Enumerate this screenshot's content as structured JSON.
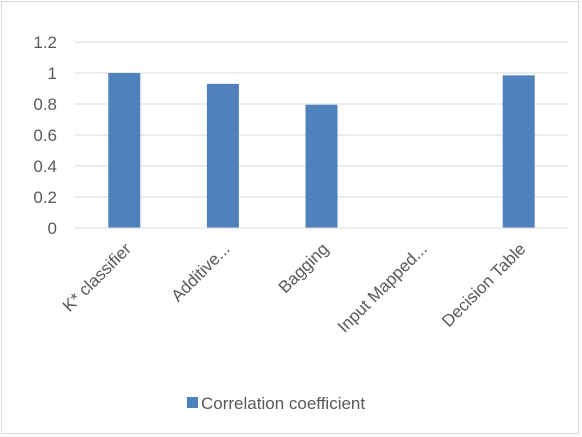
{
  "chart_data": {
    "type": "bar",
    "title": "",
    "xlabel": "",
    "ylabel": "",
    "categories": [
      "K* classifier",
      "Additive...",
      "Bagging",
      "Input Mapped...",
      "Decision Table"
    ],
    "series": [
      {
        "name": "Correlation coefficient",
        "values": [
          1.0,
          0.93,
          0.795,
          0,
          0.985
        ],
        "color": "#4f81bd"
      }
    ],
    "ylim": [
      0,
      1.2
    ],
    "yticks": [
      "0",
      "0.2",
      "0.4",
      "0.6",
      "0.8",
      "1",
      "1.2"
    ],
    "grid": true,
    "legend": "bottom"
  }
}
